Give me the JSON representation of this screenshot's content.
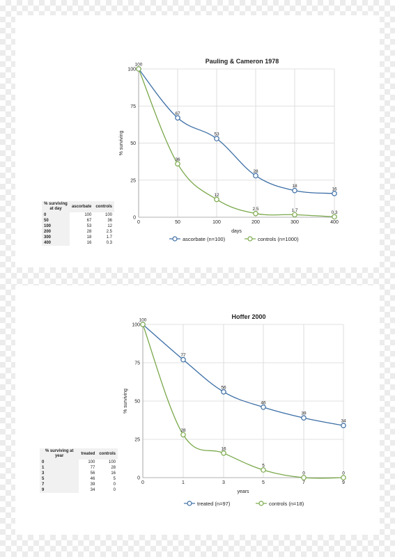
{
  "chart_data": [
    {
      "type": "line",
      "title": "Pauling & Cameron 1978",
      "xlabel": "days",
      "ylabel": "% surviving",
      "x": [
        0,
        50,
        100,
        200,
        300,
        400
      ],
      "x_ticks": [
        "0",
        "50",
        "100",
        "200",
        "300",
        "400"
      ],
      "y_ticks": [
        "0",
        "25",
        "50",
        "75",
        "100"
      ],
      "ylim": [
        0,
        100
      ],
      "grid": true,
      "legend_position": "bottom",
      "series": [
        {
          "name": "ascorbate (n=100)",
          "color": "#3b6ea5",
          "values": [
            100,
            67,
            53,
            28,
            18,
            16
          ],
          "labels": [
            "100",
            "67",
            "53",
            "28",
            "18",
            "16"
          ]
        },
        {
          "name": "controls (n=1000)",
          "color": "#7aa84a",
          "values": [
            100,
            36,
            12,
            2.5,
            1.7,
            0.3
          ],
          "labels": [
            "",
            "36",
            "12",
            "2.5",
            "1.7",
            "0.3"
          ]
        }
      ],
      "table": {
        "headers": [
          "% surviving at day",
          "ascorbate",
          "controls"
        ],
        "rows": [
          [
            "0",
            "100",
            "100"
          ],
          [
            "50",
            "67",
            "36"
          ],
          [
            "100",
            "53",
            "12"
          ],
          [
            "200",
            "28",
            "2.5"
          ],
          [
            "300",
            "18",
            "1.7"
          ],
          [
            "400",
            "16",
            "0.3"
          ]
        ]
      }
    },
    {
      "type": "line",
      "title": "Hoffer 2000",
      "xlabel": "years",
      "ylabel": "% surviving",
      "x": [
        0,
        1,
        3,
        5,
        7,
        9
      ],
      "x_ticks": [
        "0",
        "1",
        "3",
        "5",
        "7",
        "9"
      ],
      "y_ticks": [
        "0",
        "25",
        "50",
        "75",
        "100"
      ],
      "ylim": [
        0,
        100
      ],
      "grid": true,
      "legend_position": "bottom",
      "series": [
        {
          "name": "treated (n=97)",
          "color": "#3b6ea5",
          "values": [
            100,
            77,
            56,
            46,
            39,
            34
          ],
          "labels": [
            "100",
            "77",
            "56",
            "46",
            "39",
            "34"
          ]
        },
        {
          "name": "controls (n=18)",
          "color": "#7aa84a",
          "values": [
            100,
            28,
            16,
            5,
            0,
            0
          ],
          "labels": [
            "",
            "28",
            "16",
            "5",
            "0",
            "0"
          ]
        }
      ],
      "table": {
        "headers": [
          "% surviving at year",
          "treated",
          "controls"
        ],
        "rows": [
          [
            "0",
            "100",
            "100"
          ],
          [
            "1",
            "77",
            "28"
          ],
          [
            "3",
            "56",
            "16"
          ],
          [
            "5",
            "46",
            "5"
          ],
          [
            "7",
            "39",
            "0"
          ],
          [
            "9",
            "34",
            "0"
          ]
        ]
      }
    }
  ]
}
